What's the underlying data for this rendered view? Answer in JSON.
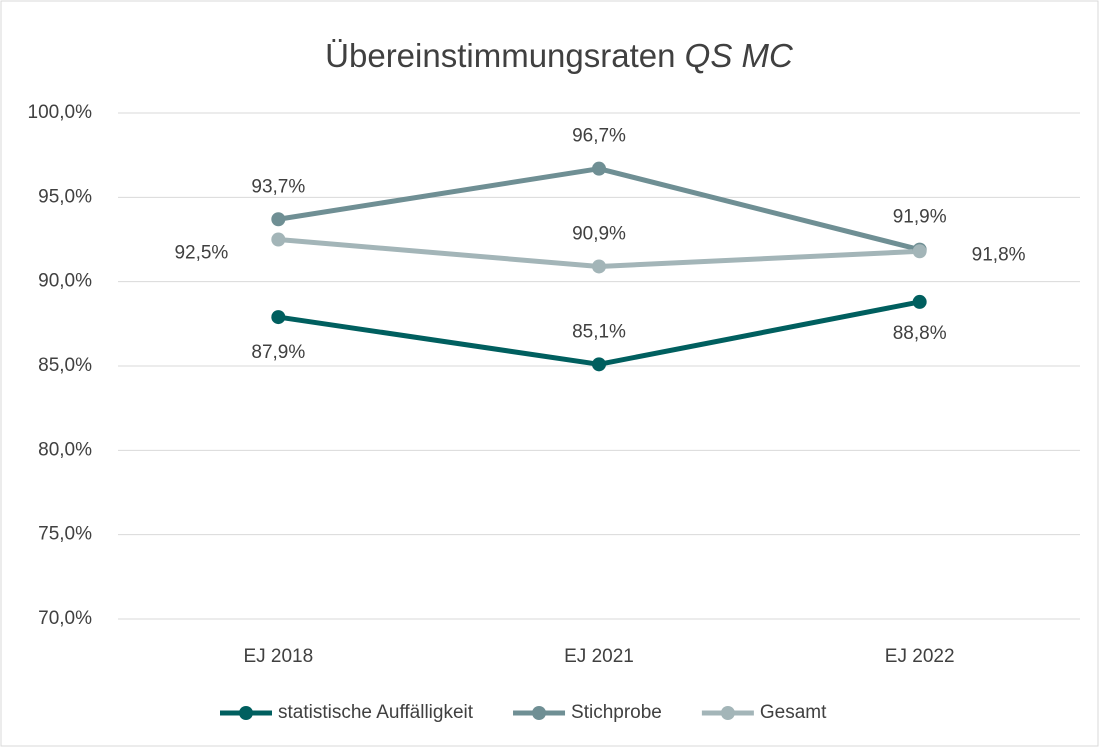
{
  "chart_data": {
    "type": "line",
    "title": {
      "text": "Übereinstimmungsraten",
      "emphasis": "QS MC"
    },
    "categories": [
      "EJ 2018",
      "EJ 2021",
      "EJ 2022"
    ],
    "series": [
      {
        "name": "statistische Auffälligkeit",
        "color": "#005f5f",
        "values": [
          87.9,
          85.1,
          88.8
        ],
        "value_labels": [
          "87,9%",
          "85,1%",
          "88,8%"
        ]
      },
      {
        "name": "Stichprobe",
        "color": "#6f8f94",
        "values": [
          93.7,
          96.7,
          91.9
        ],
        "value_labels": [
          "93,7%",
          "96,7%",
          "91,9%"
        ]
      },
      {
        "name": "Gesamt",
        "color": "#a3b5b8",
        "values": [
          92.5,
          90.9,
          91.8
        ],
        "value_labels": [
          "92,5%",
          "90,9%",
          "91,8%"
        ]
      }
    ],
    "ylim": [
      70,
      100
    ],
    "yticks": [
      {
        "value": 70,
        "label": "70,0%"
      },
      {
        "value": 75,
        "label": "75,0%"
      },
      {
        "value": 80,
        "label": "80,0%"
      },
      {
        "value": 85,
        "label": "85,0%"
      },
      {
        "value": 90,
        "label": "90,0%"
      },
      {
        "value": 95,
        "label": "95,0%"
      },
      {
        "value": 100,
        "label": "100,0%"
      }
    ],
    "grid": true,
    "legend": "bottom"
  }
}
